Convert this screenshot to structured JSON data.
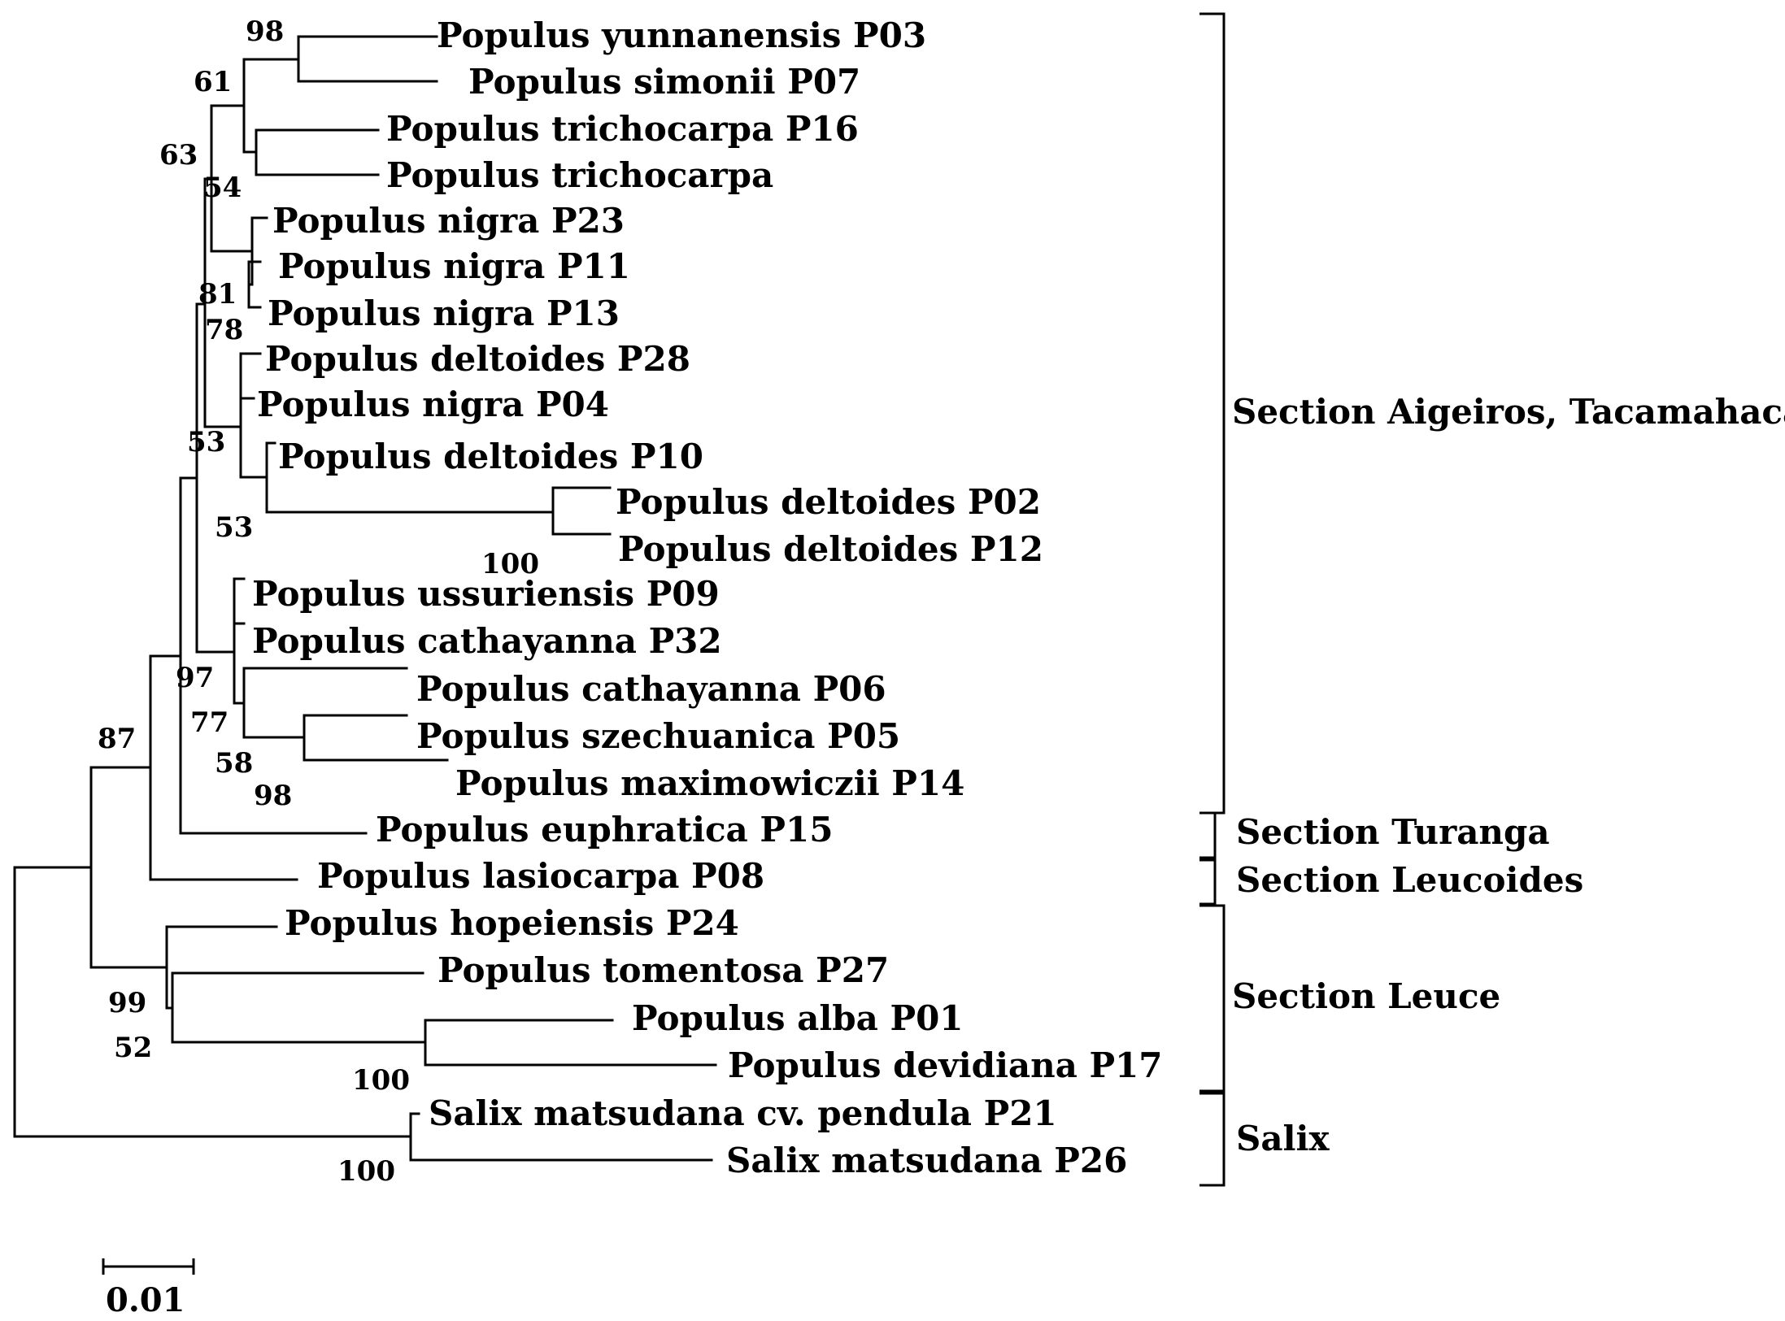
{
  "taxa": [
    {
      "id": "p03",
      "label": "Populus yunnanensis P03"
    },
    {
      "id": "p07",
      "label": "Populus simonii P07"
    },
    {
      "id": "p16",
      "label": "Populus trichocarpa P16"
    },
    {
      "id": "tri",
      "label": "Populus trichocarpa"
    },
    {
      "id": "p23",
      "label": "Populus nigra P23"
    },
    {
      "id": "p11",
      "label": "Populus nigra P11"
    },
    {
      "id": "p13",
      "label": "Populus nigra P13"
    },
    {
      "id": "p28",
      "label": "Populus deltoides P28"
    },
    {
      "id": "p04",
      "label": "Populus nigra P04"
    },
    {
      "id": "p10",
      "label": "Populus deltoides P10"
    },
    {
      "id": "p02",
      "label": "Populus deltoides P02"
    },
    {
      "id": "p12",
      "label": "Populus deltoides P12"
    },
    {
      "id": "p09",
      "label": "Populus ussuriensis P09"
    },
    {
      "id": "p32",
      "label": "Populus cathayanna P32"
    },
    {
      "id": "p06",
      "label": "Populus cathayanna P06"
    },
    {
      "id": "p05",
      "label": "Populus szechuanica P05"
    },
    {
      "id": "p14",
      "label": "Populus maximowiczii P14"
    },
    {
      "id": "p15",
      "label": "Populus euphratica P15"
    },
    {
      "id": "p08",
      "label": "Populus lasiocarpa P08"
    },
    {
      "id": "p24",
      "label": "Populus hopeiensis P24"
    },
    {
      "id": "p27",
      "label": "Populus tomentosa P27"
    },
    {
      "id": "p01",
      "label": "Populus alba P01"
    },
    {
      "id": "p17",
      "label": "Populus devidiana P17"
    },
    {
      "id": "p21",
      "label": "Salix matsudana cv. pendula P21"
    },
    {
      "id": "p26",
      "label": "Salix matsudana P26"
    }
  ],
  "bootstrap": [
    "98",
    "61",
    "63",
    "54",
    "81",
    "78",
    "53",
    "53",
    "100",
    "97",
    "77",
    "58",
    "98",
    "87",
    "99",
    "52",
    "100",
    "100"
  ],
  "groups": [
    {
      "label": "Section Aigeiros, Tacamahaca"
    },
    {
      "label": "Section Turanga"
    },
    {
      "label": "Section Leucoides"
    },
    {
      "label": "Section Leuce"
    },
    {
      "label": "Salix"
    }
  ],
  "scale_bar": {
    "label": "0.01"
  }
}
